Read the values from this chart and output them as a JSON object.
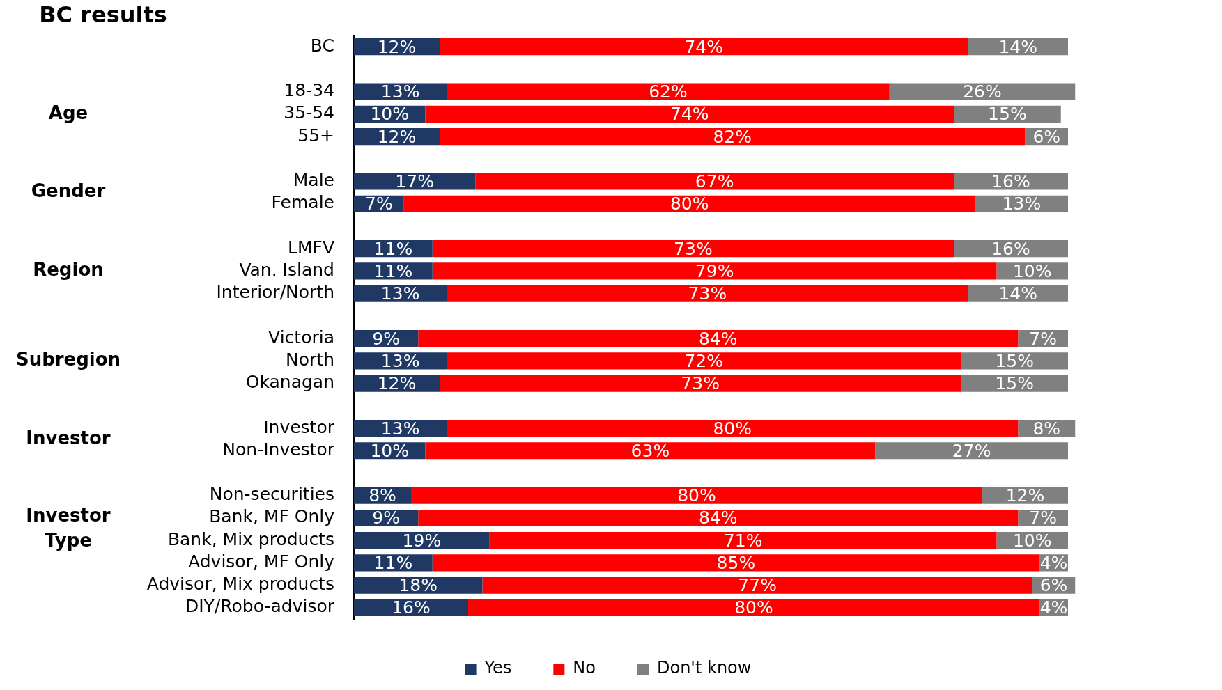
{
  "chart_data": {
    "type": "bar",
    "orientation": "horizontal",
    "stacked": true,
    "title": "BC results",
    "categories": [
      "BC",
      null,
      "18-34",
      "35-54",
      "55+",
      null,
      "Male",
      "Female",
      null,
      "LMFV",
      "Van. Island",
      "Interior/North",
      null,
      "Victoria",
      "North",
      "Okanagan",
      null,
      "Investor",
      "Non-Investor",
      null,
      "Non-securities",
      "Bank, MF Only",
      "Bank, Mix products",
      "Advisor, MF Only",
      "Advisor, Mix products",
      "DIY/Robo-advisor"
    ],
    "series": [
      {
        "name": "Yes",
        "color": "#1f3864",
        "values": [
          12,
          null,
          13,
          10,
          12,
          null,
          17,
          7,
          null,
          11,
          11,
          13,
          null,
          9,
          13,
          12,
          null,
          13,
          10,
          null,
          8,
          9,
          19,
          11,
          18,
          16
        ],
        "value_labels": [
          "12%",
          null,
          "13%",
          "10%",
          "12%",
          null,
          "17%",
          "7%",
          null,
          "11%",
          "11%",
          "13%",
          null,
          "9%",
          "13%",
          "12%",
          null,
          "13%",
          "10%",
          null,
          "8%",
          "9%",
          "19%",
          "11%",
          "18%",
          "16%"
        ]
      },
      {
        "name": "No",
        "color": "#ff0000",
        "values": [
          74,
          null,
          62,
          74,
          82,
          null,
          67,
          80,
          null,
          73,
          79,
          73,
          null,
          84,
          72,
          73,
          null,
          80,
          63,
          null,
          80,
          84,
          71,
          85,
          77,
          80
        ],
        "value_labels": [
          "74%",
          null,
          "62%",
          "74%",
          "82%",
          null,
          "67%",
          "80%",
          null,
          "73%",
          "79%",
          "73%",
          null,
          "84%",
          "72%",
          "73%",
          null,
          "80%",
          "63%",
          null,
          "80%",
          "84%",
          "71%",
          "85%",
          "77%",
          "80%"
        ]
      },
      {
        "name": "Don't know",
        "color": "#808080",
        "values": [
          14,
          null,
          26,
          15,
          6,
          null,
          16,
          13,
          null,
          16,
          10,
          14,
          null,
          7,
          15,
          15,
          null,
          8,
          27,
          null,
          12,
          7,
          10,
          4,
          6,
          4
        ],
        "value_labels": [
          "14%",
          null,
          "26%",
          "15%",
          "6%",
          null,
          "16%",
          "13%",
          null,
          "16%",
          "10%",
          "14%",
          null,
          "7%",
          "15%",
          "15%",
          null,
          "8%",
          "27%",
          null,
          "12%",
          "7%",
          "10%",
          "4%",
          "6%",
          "4%"
        ]
      }
    ],
    "legend": "bottom",
    "grid": false,
    "tick_labels": "y",
    "annotations": [
      "Age",
      "Gender",
      "Region",
      "Subregion",
      "Investor",
      "Investor Type"
    ]
  }
}
